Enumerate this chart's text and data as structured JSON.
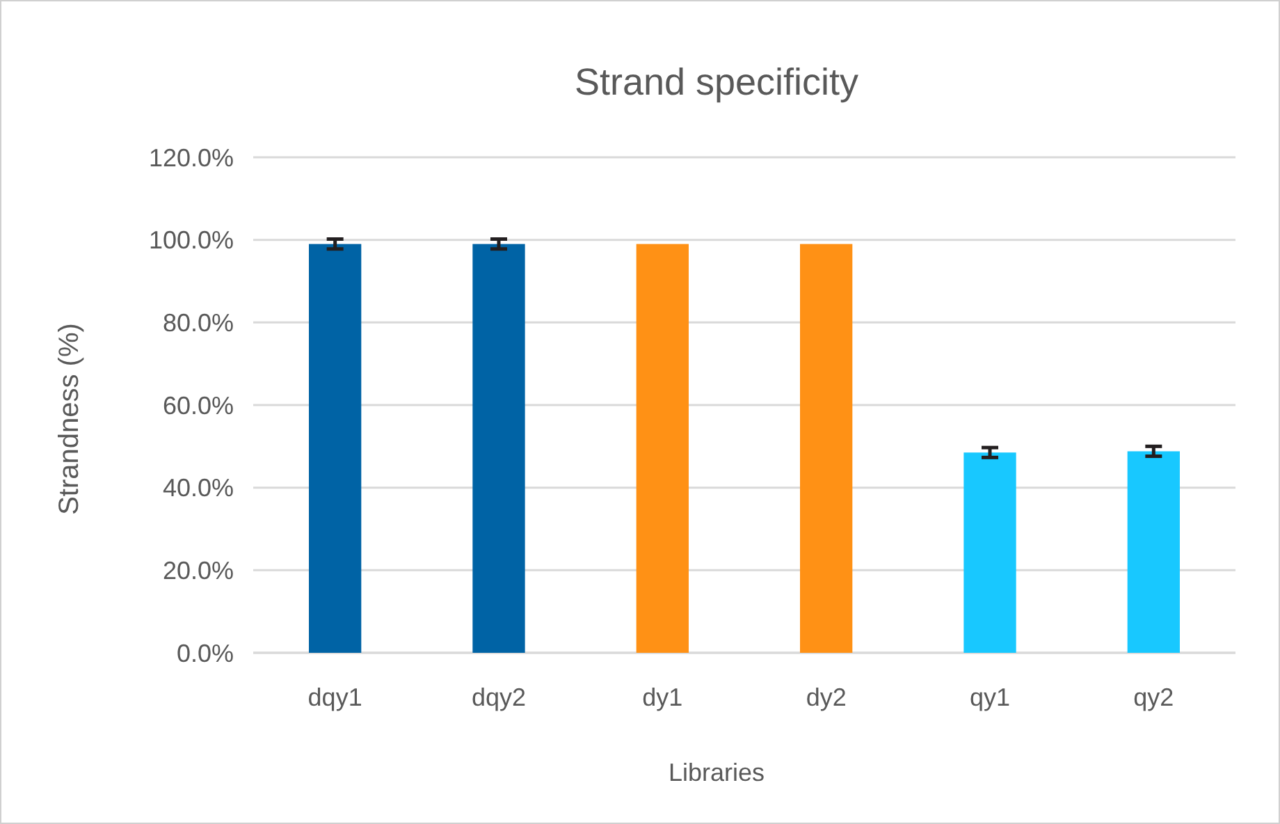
{
  "chart_data": {
    "type": "bar",
    "title": "Strand specificity",
    "xlabel": "Libraries",
    "ylabel": "Strandness (%)",
    "categories": [
      "dqy1",
      "dqy2",
      "dy1",
      "dy2",
      "qy1",
      "qy2"
    ],
    "values": [
      99.0,
      99.0,
      99.0,
      99.0,
      48.5,
      48.8
    ],
    "colors": [
      "#0063a5",
      "#0063a5",
      "#ff9115",
      "#ff9115",
      "#18c8ff",
      "#18c8ff"
    ],
    "errors": [
      1.2,
      1.2,
      null,
      null,
      1.2,
      1.2
    ],
    "ylim": [
      0,
      120
    ],
    "yticks": [
      {
        "value": 0,
        "label": "0.0%"
      },
      {
        "value": 20,
        "label": "20.0%"
      },
      {
        "value": 40,
        "label": "40.0%"
      },
      {
        "value": 60,
        "label": "60.0%"
      },
      {
        "value": 80,
        "label": "80.0%"
      },
      {
        "value": 100,
        "label": "100.0%"
      },
      {
        "value": 120,
        "label": "120.0%"
      }
    ],
    "grid": "y"
  }
}
